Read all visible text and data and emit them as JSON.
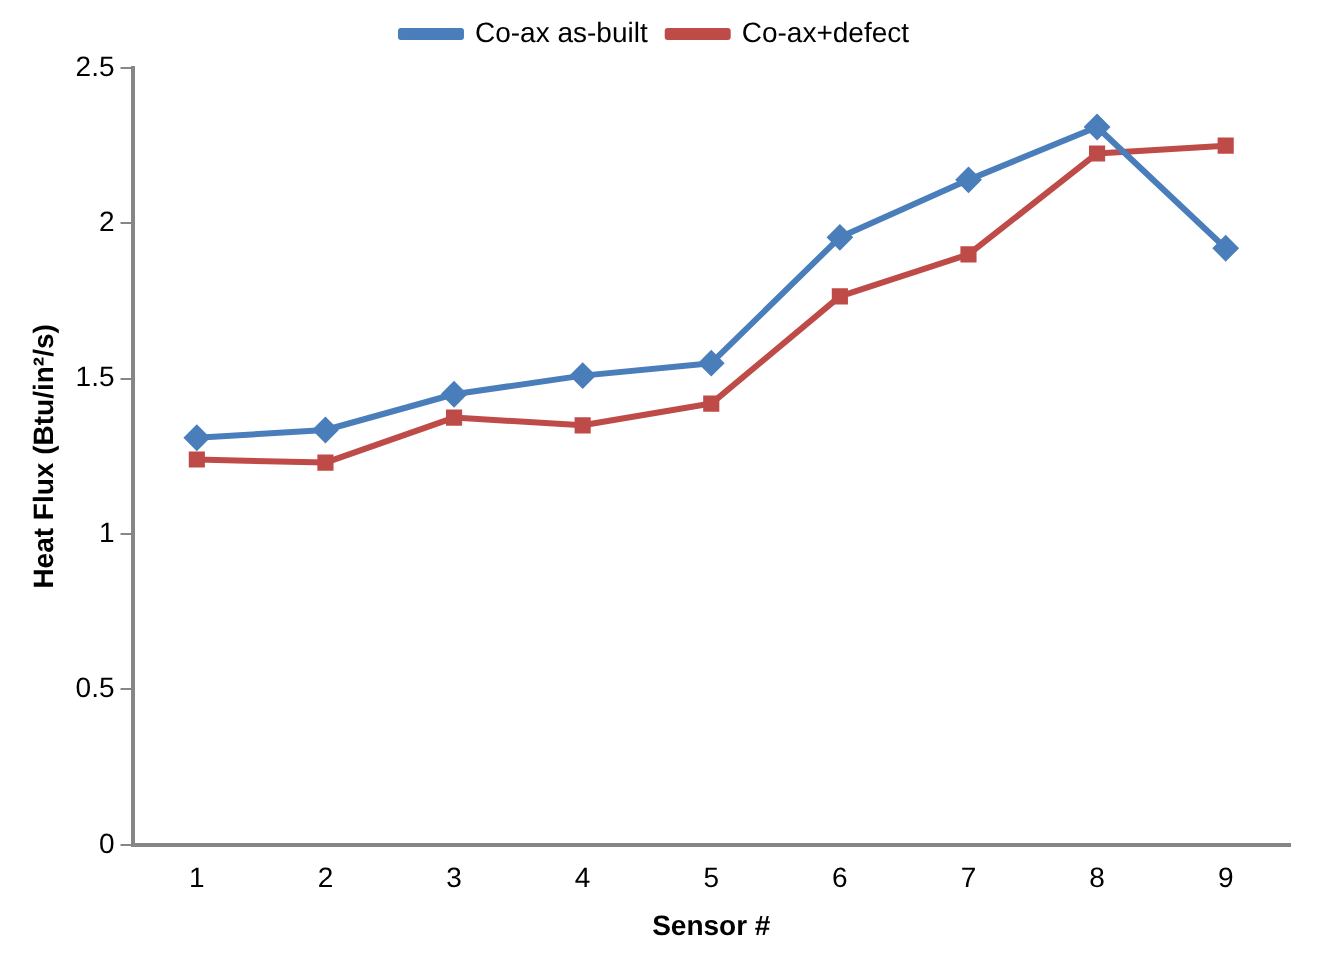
{
  "chart_data": {
    "type": "line",
    "xlabel": "Sensor #",
    "ylabel": "Heat Flux (Btu/in²/s)",
    "categories": [
      "1",
      "2",
      "3",
      "4",
      "5",
      "6",
      "7",
      "8",
      "9"
    ],
    "series": [
      {
        "name": "Co-ax as-built",
        "color": "#4a7ebb",
        "marker": "diamond",
        "values": [
          1.31,
          1.335,
          1.45,
          1.51,
          1.55,
          1.955,
          2.14,
          2.31,
          1.92
        ]
      },
      {
        "name": "Co-ax+defect",
        "color": "#be4b48",
        "marker": "square",
        "values": [
          1.24,
          1.23,
          1.375,
          1.35,
          1.42,
          1.765,
          1.9,
          2.225,
          2.25
        ]
      }
    ],
    "ylim": [
      0,
      2.5
    ],
    "yticks": [
      0,
      0.5,
      1,
      1.5,
      2,
      2.5
    ],
    "grid": false,
    "legend": "top",
    "line_style": "solid"
  }
}
